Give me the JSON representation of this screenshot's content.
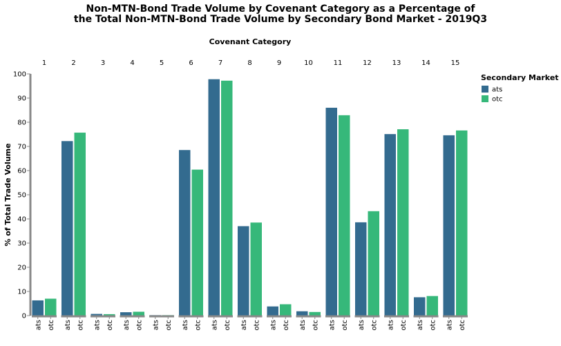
{
  "chart_data": {
    "type": "bar",
    "title_line1": "Non-MTN-Bond Trade Volume by Covenant Category as a Percentage of",
    "title_line2": "the Total Non-MTN-Bond Trade Volume by Secondary Bond Market - 2019Q3",
    "facet_title": "Covenant Category",
    "ylabel": "% of Total Trade Volume",
    "ylim": [
      0,
      100
    ],
    "yticks": [
      0,
      10,
      20,
      30,
      40,
      50,
      60,
      70,
      80,
      90,
      100
    ],
    "categories": [
      "1",
      "2",
      "3",
      "4",
      "5",
      "6",
      "7",
      "8",
      "9",
      "10",
      "11",
      "12",
      "13",
      "14",
      "15"
    ],
    "markets": [
      "ats",
      "otc"
    ],
    "series": [
      {
        "name": "ats",
        "color": "#336b8f",
        "values": [
          6.3,
          72.2,
          0.7,
          1.4,
          0.2,
          68.5,
          97.8,
          37.0,
          3.8,
          1.8,
          86.0,
          38.6,
          75.1,
          7.6,
          74.6
        ]
      },
      {
        "name": "otc",
        "color": "#36b87a",
        "values": [
          7.0,
          75.7,
          0.6,
          1.6,
          0.2,
          60.4,
          97.2,
          38.5,
          4.7,
          1.5,
          82.9,
          43.2,
          77.1,
          8.1,
          76.6
        ]
      }
    ],
    "legend": {
      "title": "Secondary Market",
      "position": "top-right",
      "items": [
        "ats",
        "otc"
      ]
    },
    "grid": false
  }
}
